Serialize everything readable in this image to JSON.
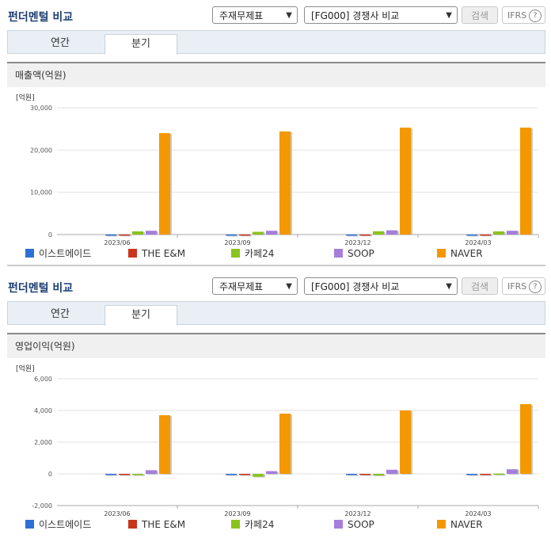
{
  "colors": {
    "이스트에이드": "#2e6fd6",
    "THE E&M": "#c8351c",
    "카페24": "#8ac31e",
    "SOOP": "#a57edb",
    "NAVER": "#f39800"
  },
  "panels": [
    {
      "title": "펀더멘털 비교",
      "select1": "주재무제표",
      "select2": "[FG000] 경쟁사 비교",
      "search_label": "검색",
      "ifrs_label": "IFRS",
      "tab_annual": "연간",
      "tab_quarter": "분기",
      "section": "매출액(억원)",
      "unit": "[억원]",
      "legend": [
        "이스트에이드",
        "THE E&M",
        "카페24",
        "SOOP",
        "NAVER"
      ]
    },
    {
      "title": "펀더멘털 비교",
      "select1": "주재무제표",
      "select2": "[FG000] 경쟁사 비교",
      "search_label": "검색",
      "ifrs_label": "IFRS",
      "tab_annual": "연간",
      "tab_quarter": "분기",
      "section": "영업이익(억원)",
      "unit": "[억원]",
      "legend": [
        "이스트에이드",
        "THE E&M",
        "카페24",
        "SOOP",
        "NAVER"
      ]
    }
  ],
  "chart_data": [
    {
      "type": "bar",
      "title": "매출액(억원)",
      "ylabel": "[억원]",
      "categories": [
        "2023/06",
        "2023/09",
        "2023/12",
        "2024/03"
      ],
      "ylim": [
        0,
        30000
      ],
      "yticks": [
        "0",
        "10,000",
        "20,000",
        "30,000"
      ],
      "ytick_values": [
        0,
        10000,
        20000,
        30000
      ],
      "grid": true,
      "legend_position": "bottom",
      "series": [
        {
          "name": "이스트에이드",
          "values": [
            20,
            20,
            20,
            20
          ]
        },
        {
          "name": "THE E&M",
          "values": [
            30,
            30,
            30,
            30
          ]
        },
        {
          "name": "카페24",
          "values": [
            750,
            650,
            780,
            750
          ]
        },
        {
          "name": "SOOP",
          "values": [
            900,
            900,
            1000,
            900
          ]
        },
        {
          "name": "NAVER",
          "values": [
            24000,
            24400,
            25300,
            25300
          ]
        }
      ]
    },
    {
      "type": "bar",
      "title": "영업이익(억원)",
      "ylabel": "[억원]",
      "categories": [
        "2023/06",
        "2023/09",
        "2023/12",
        "2024/03"
      ],
      "ylim": [
        -2000,
        6000
      ],
      "yticks": [
        "-2,000",
        "0",
        "2,000",
        "4,000",
        "6,000"
      ],
      "ytick_values": [
        -2000,
        0,
        2000,
        4000,
        6000
      ],
      "grid": true,
      "legend_position": "bottom",
      "series": [
        {
          "name": "이스트에이드",
          "values": [
            -10,
            -10,
            -10,
            -10
          ]
        },
        {
          "name": "THE E&M",
          "values": [
            -20,
            -20,
            -20,
            -20
          ]
        },
        {
          "name": "카페24",
          "values": [
            -80,
            -180,
            -100,
            20
          ]
        },
        {
          "name": "SOOP",
          "values": [
            230,
            170,
            260,
            290
          ]
        },
        {
          "name": "NAVER",
          "values": [
            3700,
            3800,
            4000,
            4400
          ]
        }
      ]
    }
  ]
}
